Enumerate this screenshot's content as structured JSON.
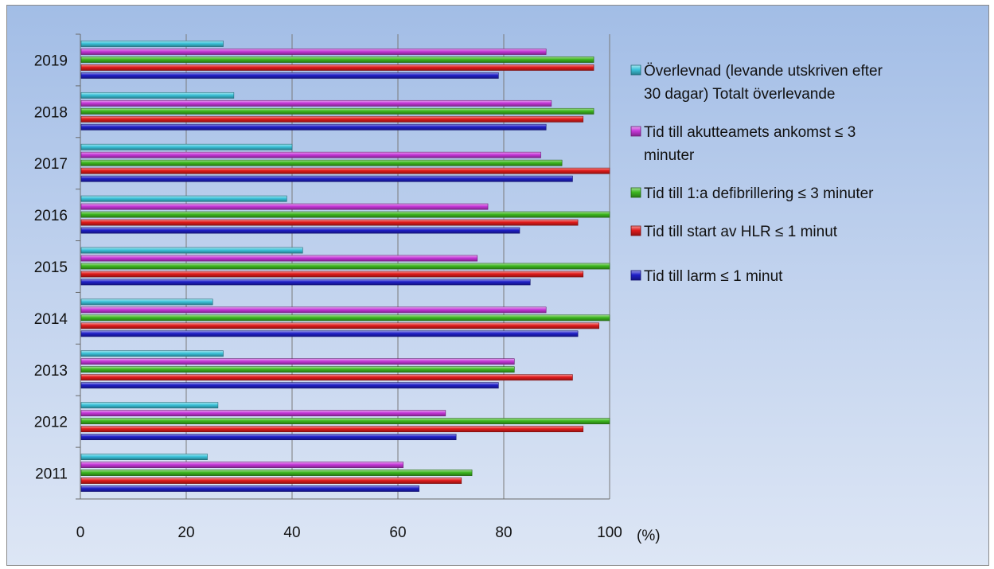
{
  "chart_data": {
    "type": "bar",
    "orientation": "horizontal",
    "categories": [
      "2011",
      "2012",
      "2013",
      "2014",
      "2015",
      "2016",
      "2017",
      "2018",
      "2019"
    ],
    "series": [
      {
        "name": "Tid till larm  ≤ 1 minut",
        "color": "#1f1fc8",
        "values": [
          64,
          71,
          79,
          94,
          85,
          83,
          93,
          88,
          79
        ]
      },
      {
        "name": "Tid till start av HLR ≤ 1 minut",
        "color": "#e11b1b",
        "values": [
          72,
          95,
          93,
          98,
          95,
          94,
          100,
          95,
          97
        ]
      },
      {
        "name": "Tid till 1:a defibrillering ≤ 3 minuter",
        "color": "#3db81f",
        "values": [
          74,
          100,
          82,
          100,
          100,
          100,
          91,
          97,
          97
        ]
      },
      {
        "name": "Tid till akutteamets ankomst ≤ 3 minuter",
        "color": "#c638d9",
        "values": [
          61,
          69,
          82,
          88,
          75,
          77,
          87,
          89,
          88
        ]
      },
      {
        "name": "Överlevnad (levande utskriven efter 30 dagar) Totalt överlevande",
        "color": "#3cc3da",
        "values": [
          24,
          26,
          27,
          25,
          42,
          39,
          40,
          29,
          27
        ]
      }
    ],
    "legend_lines": [
      [
        "Överlevnad (levande utskriven efter",
        "30 dagar) Totalt överlevande"
      ],
      [
        "Tid till akutteamets ankomst ≤ 3",
        "minuter"
      ],
      [
        "Tid till 1:a defibrillering ≤ 3 minuter"
      ],
      [
        "Tid till start av HLR ≤ 1 minut"
      ],
      [
        "Tid till larm  ≤ 1 minut"
      ]
    ],
    "legend_order": [
      4,
      3,
      2,
      1,
      0
    ],
    "xlim": [
      0,
      100
    ],
    "x_ticks": [
      "0",
      "20",
      "40",
      "60",
      "80",
      "100"
    ],
    "x_unit": "(%)",
    "grid": true,
    "legend_position": "right"
  }
}
